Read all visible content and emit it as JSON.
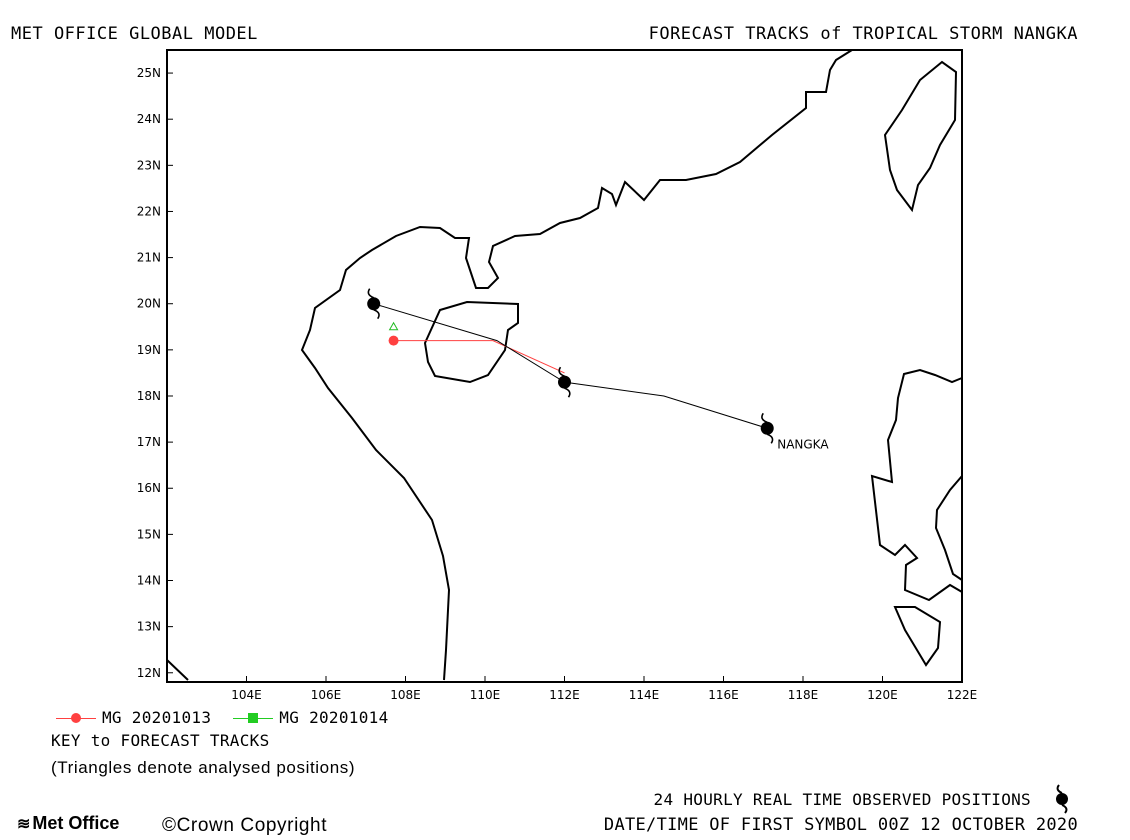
{
  "header": {
    "left_title": "MET OFFICE GLOBAL MODEL",
    "right_title": "FORECAST TRACKS of TROPICAL STORM NANGKA"
  },
  "map": {
    "lon_range": [
      102,
      122
    ],
    "lat_range": [
      11.8,
      25.5
    ],
    "lon_ticks": [
      "104E",
      "106E",
      "108E",
      "110E",
      "112E",
      "114E",
      "116E",
      "118E",
      "120E",
      "122E"
    ],
    "lat_ticks": [
      "12N",
      "13N",
      "14N",
      "15N",
      "16N",
      "17N",
      "18N",
      "19N",
      "20N",
      "21N",
      "22N",
      "23N",
      "24N",
      "25N"
    ],
    "storm_label": "NANGKA"
  },
  "tracks": {
    "observed": {
      "color": "#000000",
      "points": [
        [
          117.1,
          17.3
        ],
        [
          114.5,
          18.0
        ],
        [
          112.0,
          18.3
        ],
        [
          110.3,
          19.2
        ],
        [
          107.2,
          20.0
        ]
      ],
      "symbols": [
        [
          117.1,
          17.3
        ],
        [
          112.0,
          18.3
        ],
        [
          107.2,
          20.0
        ]
      ]
    },
    "mg_20201013": {
      "color": "#ff4040",
      "points": [
        [
          112.0,
          18.5
        ],
        [
          110.2,
          19.2
        ],
        [
          107.7,
          19.2
        ]
      ],
      "start": [
        107.7,
        19.2
      ]
    },
    "analysed_positions": [
      [
        107.7,
        19.5
      ]
    ],
    "analysed_color": "#22bb22"
  },
  "legend": {
    "series1_label": "MG 20201013",
    "series1_color": "#ff4040",
    "series2_label": "MG 20201014",
    "series2_color": "#22cc22",
    "key_title": "KEY to FORECAST TRACKS",
    "key_note": "(Triangles denote analysed positions)"
  },
  "footer": {
    "observed_note": "24 HOURLY REAL TIME OBSERVED POSITIONS",
    "first_symbol": "DATE/TIME OF FIRST SYMBOL 00Z 12 OCTOBER 2020",
    "logo_text": "Met Office",
    "copyright": "©Crown Copyright"
  }
}
